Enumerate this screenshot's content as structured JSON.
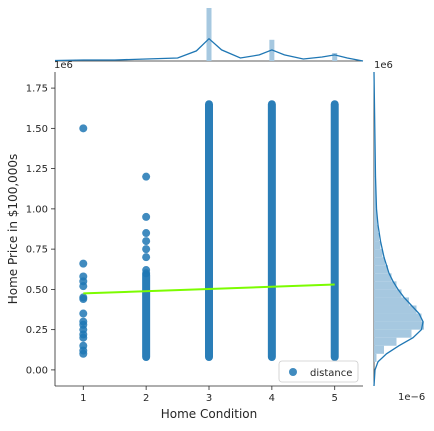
{
  "chart_data": {
    "type": "scatter",
    "xlabel": "Home Condition",
    "ylabel": "Home Price in $100,000s",
    "y_offset_label": "1e6",
    "right_offset_label": "1e6",
    "right_bottom_offset_label": "1e−6",
    "xlim": [
      0.55,
      5.45
    ],
    "ylim": [
      -0.1,
      1.85
    ],
    "x_ticks": [
      1,
      2,
      3,
      4,
      5
    ],
    "x_tick_labels": [
      "1",
      "2",
      "3",
      "4",
      "5"
    ],
    "y_ticks": [
      0.0,
      0.25,
      0.5,
      0.75,
      1.0,
      1.25,
      1.5,
      1.75
    ],
    "y_tick_labels": [
      "0.00",
      "0.25",
      "0.50",
      "0.75",
      "1.00",
      "1.25",
      "1.50",
      "1.75"
    ],
    "legend": {
      "label": "distance",
      "placement": "lower-right"
    },
    "point_color": "#1f77b4",
    "scatter_points": [
      {
        "x": 1,
        "y": 1.5
      },
      {
        "x": 1,
        "y": 0.66
      },
      {
        "x": 1,
        "y": 0.58
      },
      {
        "x": 1,
        "y": 0.55
      },
      {
        "x": 1,
        "y": 0.52
      },
      {
        "x": 1,
        "y": 0.45
      },
      {
        "x": 1,
        "y": 0.44
      },
      {
        "x": 1,
        "y": 0.35
      },
      {
        "x": 1,
        "y": 0.3
      },
      {
        "x": 1,
        "y": 0.28
      },
      {
        "x": 1,
        "y": 0.25
      },
      {
        "x": 1,
        "y": 0.22
      },
      {
        "x": 1,
        "y": 0.2
      },
      {
        "x": 1,
        "y": 0.15
      },
      {
        "x": 1,
        "y": 0.12
      },
      {
        "x": 1,
        "y": 0.1
      },
      {
        "x": 2,
        "y": 1.2
      },
      {
        "x": 2,
        "y": 0.95
      },
      {
        "x": 2,
        "y": 0.85
      },
      {
        "x": 2,
        "y": 0.8
      },
      {
        "x": 2,
        "y": 0.75
      },
      {
        "x": 2,
        "y": 0.7
      },
      {
        "x": 2,
        "y": 0.62
      },
      {
        "x": 2,
        "y": 0.6
      }
    ],
    "scatter_columns": [
      {
        "x": 2,
        "y_min": 0.08,
        "y_max": 0.59
      },
      {
        "x": 3,
        "y_min": 0.08,
        "y_max": 1.65
      },
      {
        "x": 4,
        "y_min": 0.08,
        "y_max": 1.65
      },
      {
        "x": 5,
        "y_min": 0.08,
        "y_max": 1.65
      }
    ],
    "regression_line": {
      "x": [
        1,
        5
      ],
      "y": [
        0.475,
        0.53
      ],
      "color": "#7cfc00"
    },
    "marginal_color": "#1f77b4",
    "marginal_fill": "#a6c8e0",
    "top_marginal": {
      "bins": [
        {
          "x": 3,
          "height": 1.0
        },
        {
          "x": 4,
          "height": 0.4
        },
        {
          "x": 5,
          "height": 0.15
        }
      ],
      "kde": [
        {
          "x": 0.55,
          "d": 0.01
        },
        {
          "x": 1,
          "d": 0.02
        },
        {
          "x": 1.5,
          "d": 0.02
        },
        {
          "x": 2,
          "d": 0.04
        },
        {
          "x": 2.5,
          "d": 0.06
        },
        {
          "x": 2.8,
          "d": 0.2
        },
        {
          "x": 3,
          "d": 0.44
        },
        {
          "x": 3.2,
          "d": 0.22
        },
        {
          "x": 3.5,
          "d": 0.06
        },
        {
          "x": 3.8,
          "d": 0.12
        },
        {
          "x": 4,
          "d": 0.22
        },
        {
          "x": 4.2,
          "d": 0.12
        },
        {
          "x": 4.5,
          "d": 0.04
        },
        {
          "x": 4.8,
          "d": 0.08
        },
        {
          "x": 5,
          "d": 0.12
        },
        {
          "x": 5.2,
          "d": 0.06
        },
        {
          "x": 5.45,
          "d": 0.0
        }
      ]
    },
    "right_marginal": {
      "bins": [
        {
          "y0": 0.05,
          "y1": 0.1,
          "w": 0.05
        },
        {
          "y0": 0.1,
          "y1": 0.15,
          "w": 0.2
        },
        {
          "y0": 0.15,
          "y1": 0.2,
          "w": 0.45
        },
        {
          "y0": 0.2,
          "y1": 0.25,
          "w": 0.75
        },
        {
          "y0": 0.25,
          "y1": 0.3,
          "w": 1.0
        },
        {
          "y0": 0.3,
          "y1": 0.35,
          "w": 0.95
        },
        {
          "y0": 0.35,
          "y1": 0.4,
          "w": 0.85
        },
        {
          "y0": 0.4,
          "y1": 0.45,
          "w": 0.7
        },
        {
          "y0": 0.45,
          "y1": 0.5,
          "w": 0.55
        },
        {
          "y0": 0.5,
          "y1": 0.55,
          "w": 0.45
        },
        {
          "y0": 0.55,
          "y1": 0.6,
          "w": 0.35
        },
        {
          "y0": 0.6,
          "y1": 0.65,
          "w": 0.28
        },
        {
          "y0": 0.65,
          "y1": 0.7,
          "w": 0.22
        },
        {
          "y0": 0.7,
          "y1": 0.75,
          "w": 0.17
        },
        {
          "y0": 0.75,
          "y1": 0.8,
          "w": 0.13
        },
        {
          "y0": 0.8,
          "y1": 0.85,
          "w": 0.1
        },
        {
          "y0": 0.85,
          "y1": 0.9,
          "w": 0.08
        },
        {
          "y0": 0.9,
          "y1": 1.0,
          "w": 0.06
        },
        {
          "y0": 1.0,
          "y1": 1.2,
          "w": 0.04
        },
        {
          "y0": 1.2,
          "y1": 1.65,
          "w": 0.02
        }
      ],
      "kde": [
        {
          "y": -0.1,
          "d": 0.0
        },
        {
          "y": 0.0,
          "d": 0.02
        },
        {
          "y": 0.05,
          "d": 0.08
        },
        {
          "y": 0.1,
          "d": 0.25
        },
        {
          "y": 0.15,
          "d": 0.5
        },
        {
          "y": 0.2,
          "d": 0.78
        },
        {
          "y": 0.25,
          "d": 0.95
        },
        {
          "y": 0.3,
          "d": 0.98
        },
        {
          "y": 0.35,
          "d": 0.9
        },
        {
          "y": 0.4,
          "d": 0.75
        },
        {
          "y": 0.45,
          "d": 0.6
        },
        {
          "y": 0.5,
          "d": 0.48
        },
        {
          "y": 0.55,
          "d": 0.38
        },
        {
          "y": 0.6,
          "d": 0.3
        },
        {
          "y": 0.7,
          "d": 0.2
        },
        {
          "y": 0.8,
          "d": 0.13
        },
        {
          "y": 0.9,
          "d": 0.08
        },
        {
          "y": 1.0,
          "d": 0.05
        },
        {
          "y": 1.2,
          "d": 0.03
        },
        {
          "y": 1.5,
          "d": 0.015
        },
        {
          "y": 1.85,
          "d": 0.0
        }
      ]
    }
  }
}
